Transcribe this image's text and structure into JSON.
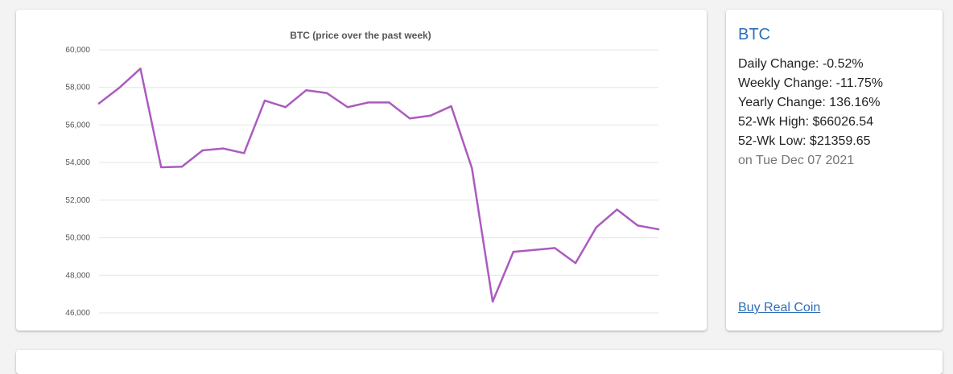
{
  "info": {
    "title": "BTC",
    "daily_change": "Daily Change: -0.52%",
    "weekly_change": "Weekly Change: -11.75%",
    "yearly_change": "Yearly Change: 136.16%",
    "high_52wk": "52-Wk High: $66026.54",
    "low_52wk": "52-Wk Low: $21359.65",
    "date": "on Tue Dec 07 2021",
    "buy_link": "Buy Real Coin"
  },
  "colors": {
    "line": "#ab5bbf",
    "link": "#2d6fb8",
    "grid": "#e6e6e6"
  },
  "chart_data": {
    "type": "line",
    "title": "BTC (price over the past week)",
    "xlabel": "",
    "ylabel": "",
    "ylim": [
      46000,
      60000
    ],
    "yticks": [
      46000,
      48000,
      50000,
      52000,
      54000,
      56000,
      58000,
      60000
    ],
    "ytick_labels": [
      "46,000",
      "48,000",
      "50,000",
      "52,000",
      "54,000",
      "56,000",
      "58,000",
      "60,000"
    ],
    "grid": true,
    "x": [
      0,
      1,
      2,
      3,
      4,
      5,
      6,
      7,
      8,
      9,
      10,
      11,
      12,
      13,
      14,
      15,
      16,
      17,
      18,
      19,
      20,
      21,
      22,
      23,
      24,
      25,
      26,
      27
    ],
    "series": [
      {
        "values": [
          57150,
          58000,
          59000,
          53750,
          53780,
          54650,
          54750,
          54500,
          57300,
          56950,
          57850,
          57700,
          56950,
          57200,
          57200,
          56350,
          56500,
          57000,
          53700,
          46600,
          49250,
          49350,
          49450,
          48650,
          50550,
          51500,
          50650,
          50450
        ]
      }
    ]
  }
}
